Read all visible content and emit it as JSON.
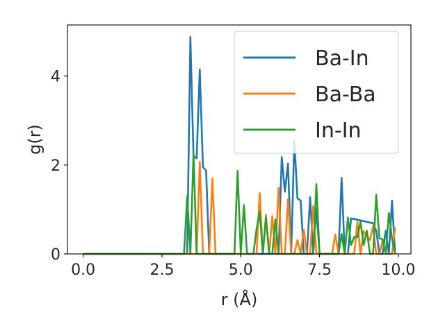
{
  "chart_data": {
    "type": "line",
    "xlabel": "r (Å)",
    "ylabel": "g(r)",
    "xlim": [
      -0.5,
      10.4
    ],
    "ylim": [
      0,
      5.15
    ],
    "xticks": [
      0.0,
      2.5,
      5.0,
      7.5,
      10.0
    ],
    "xtick_labels": [
      "0.0",
      "2.5",
      "5.0",
      "7.5",
      "10.0"
    ],
    "yticks": [
      0,
      2,
      4
    ],
    "ytick_labels": [
      "0",
      "2",
      "4"
    ],
    "grid": false,
    "legend_position": "top-right",
    "series": [
      {
        "name": "Ba-In",
        "color": "#1f77b4",
        "x": [
          0.0,
          3.3,
          3.4,
          3.5,
          3.6,
          3.7,
          3.8,
          3.9,
          4.0,
          4.1,
          6.2,
          6.3,
          6.4,
          6.5,
          6.6,
          6.7,
          6.8,
          6.9,
          7.0,
          7.1,
          7.2,
          7.3,
          7.4,
          7.5,
          7.6,
          8.1,
          8.2,
          8.3,
          8.4,
          8.5,
          9.2,
          9.3,
          9.4,
          9.5,
          9.6,
          9.7,
          9.8,
          9.9
        ],
        "y": [
          0.0,
          0.0,
          4.88,
          2.2,
          2.15,
          4.15,
          1.95,
          1.88,
          0.0,
          0.0,
          0.0,
          2.18,
          1.4,
          2.03,
          0.0,
          2.55,
          1.25,
          1.2,
          0.0,
          0.0,
          1.28,
          0.0,
          1.02,
          0.0,
          0.0,
          0.0,
          1.71,
          0.0,
          0.0,
          0.8,
          0.69,
          0.52,
          0.0,
          0.0,
          0.52,
          0.0,
          1.2,
          0.0
        ]
      },
      {
        "name": "Ba-Ba",
        "color": "#ff7f0e",
        "x": [
          0.0,
          3.5,
          3.6,
          3.7,
          3.8,
          3.9,
          4.0,
          4.1,
          4.2,
          5.1,
          5.2,
          5.3,
          5.4,
          5.5,
          5.6,
          5.7,
          5.8,
          5.9,
          6.0,
          6.1,
          6.2,
          6.3,
          6.4,
          6.5,
          6.6,
          6.7,
          6.8,
          6.9,
          7.0,
          7.1,
          7.2,
          7.3,
          7.4,
          7.5,
          7.9,
          8.0,
          8.1,
          8.2,
          8.3,
          8.4,
          8.5,
          8.6,
          8.7,
          8.8,
          8.9,
          9.0,
          9.1,
          9.2,
          9.3,
          9.4,
          9.5,
          9.6,
          9.7,
          9.8,
          9.9
        ],
        "y": [
          0.0,
          0.0,
          0.0,
          2.07,
          0.0,
          0.0,
          0.0,
          1.7,
          0.0,
          0.0,
          0.0,
          0.0,
          0.0,
          0.0,
          1.37,
          0.0,
          0.88,
          0.0,
          0.85,
          0.0,
          1.49,
          0.0,
          0.0,
          1.23,
          0.0,
          0.0,
          0.31,
          0.0,
          0.55,
          0.0,
          0.0,
          1.08,
          0.0,
          0.0,
          0.0,
          0.44,
          0.0,
          0.0,
          0.0,
          0.0,
          0.0,
          0.0,
          0.72,
          0.0,
          0.51,
          0.42,
          0.31,
          0.62,
          0.0,
          0.0,
          0.3,
          0.0,
          0.0,
          0.0,
          0.6
        ]
      },
      {
        "name": "In-In",
        "color": "#2ca02c",
        "x": [
          0.0,
          3.2,
          3.3,
          3.4,
          3.5,
          3.6,
          3.7,
          3.8,
          3.9,
          4.0,
          4.8,
          4.9,
          5.0,
          5.1,
          5.2,
          5.3,
          5.4,
          5.5,
          5.6,
          5.7,
          5.8,
          5.9,
          6.0,
          6.1,
          6.2,
          6.3,
          6.4,
          6.5,
          6.6,
          6.7,
          6.8,
          6.9,
          7.0,
          7.1,
          7.2,
          7.3,
          7.4,
          7.5,
          7.6,
          7.7,
          7.8,
          7.9,
          8.0,
          8.1,
          8.2,
          8.3,
          8.4,
          8.5,
          8.6,
          8.7,
          8.8,
          8.9,
          9.0,
          9.1,
          9.2,
          9.3,
          9.4,
          9.5,
          9.6,
          9.7,
          9.8,
          9.9
        ],
        "y": [
          0.0,
          0.0,
          1.3,
          0.0,
          2.27,
          0.0,
          0.0,
          0.0,
          0.0,
          0.0,
          0.0,
          1.87,
          0.0,
          1.1,
          0.0,
          0.0,
          0.0,
          0.55,
          0.95,
          0.0,
          0.82,
          0.0,
          0.0,
          0.78,
          0.0,
          0.0,
          0.0,
          0.0,
          0.0,
          0.0,
          0.0,
          0.0,
          0.0,
          0.0,
          0.0,
          0.0,
          1.57,
          0.0,
          0.0,
          0.0,
          0.0,
          0.0,
          0.0,
          0.0,
          0.45,
          0.0,
          0.82,
          0.2,
          0.38,
          0.38,
          0.72,
          0.2,
          0.52,
          0.0,
          0.0,
          1.33,
          0.35,
          0.33,
          0.0,
          0.92,
          0.35,
          0.0
        ]
      }
    ]
  }
}
